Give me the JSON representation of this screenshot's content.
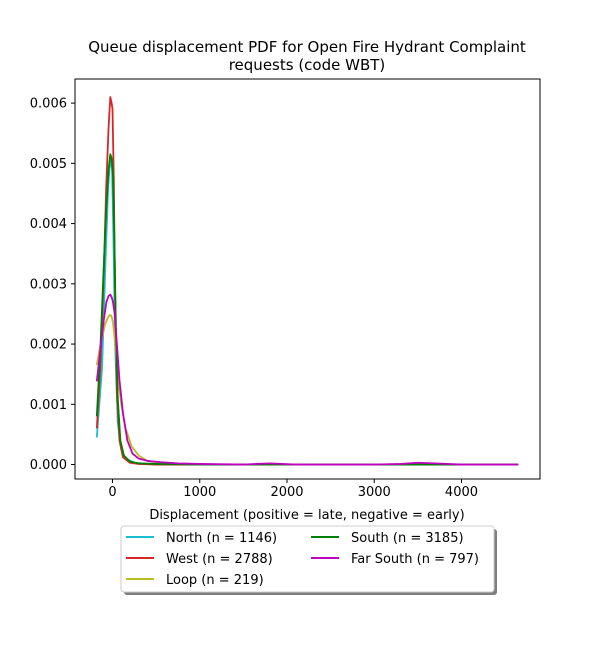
{
  "chart_data": {
    "type": "line",
    "title_line1": "Queue displacement PDF for Open Fire Hydrant Complaint",
    "title_line2": "requests (code WBT)",
    "xlabel": "Displacement (positive = late, negative = early)",
    "ylabel": "",
    "xlim": [
      -430,
      4900
    ],
    "ylim": [
      -0.00024,
      0.0064
    ],
    "xticks": [
      0,
      1000,
      2000,
      3000,
      4000
    ],
    "yticks": [
      0.0,
      0.001,
      0.002,
      0.003,
      0.004,
      0.005,
      0.006
    ],
    "ytick_labels": [
      "0.000",
      "0.001",
      "0.002",
      "0.003",
      "0.004",
      "0.005",
      "0.006"
    ],
    "grid": false,
    "legend_position": "below",
    "series": [
      {
        "name": "North (n = 1146)",
        "color": "#17becf",
        "x": [
          -180,
          -120,
          -80,
          -50,
          -25,
          -5,
          10,
          30,
          60,
          100,
          150,
          250,
          400,
          700,
          1000,
          1500,
          2000,
          3000,
          4000,
          4650
        ],
        "y": [
          0.00045,
          0.0016,
          0.0034,
          0.0046,
          0.0051,
          0.0049,
          0.0038,
          0.002,
          0.0007,
          0.00025,
          0.0001,
          3e-05,
          1e-05,
          0.0,
          0.0,
          0.0,
          0.0,
          0.0,
          0.0,
          0.0
        ]
      },
      {
        "name": "West (n = 2788)",
        "color": "#d62728",
        "x": [
          -180,
          -140,
          -100,
          -70,
          -45,
          -25,
          -10,
          0,
          15,
          30,
          50,
          80,
          120,
          200,
          300,
          500,
          1000,
          2000,
          3000,
          4000,
          4650
        ],
        "y": [
          0.0006,
          0.0016,
          0.0032,
          0.0047,
          0.0056,
          0.0061,
          0.006,
          0.0059,
          0.0047,
          0.0028,
          0.0012,
          0.0004,
          0.00012,
          3e-05,
          1e-05,
          0.0,
          0.0,
          0.0,
          0.0,
          0.0,
          0.0
        ]
      },
      {
        "name": "Loop (n = 219)",
        "color": "#bcbd22",
        "x": [
          -180,
          -150,
          -120,
          -90,
          -60,
          -35,
          -20,
          -5,
          10,
          30,
          60,
          100,
          150,
          220,
          300,
          400,
          600,
          1000,
          2000,
          3000,
          4000,
          4650
        ],
        "y": [
          0.00165,
          0.0019,
          0.0021,
          0.0023,
          0.00242,
          0.00248,
          0.00248,
          0.00243,
          0.0023,
          0.002,
          0.0015,
          0.001,
          0.0006,
          0.0003,
          0.00015,
          6e-05,
          2e-05,
          0.0,
          0.0,
          0.0,
          0.0,
          0.0
        ]
      },
      {
        "name": "South (n = 3185)",
        "color": "#008000",
        "x": [
          -180,
          -140,
          -100,
          -70,
          -45,
          -25,
          -10,
          5,
          20,
          40,
          60,
          90,
          130,
          200,
          300,
          500,
          1000,
          2000,
          3000,
          4000,
          4650
        ],
        "y": [
          0.0008,
          0.0019,
          0.0033,
          0.0043,
          0.0049,
          0.00515,
          0.00508,
          0.0048,
          0.0038,
          0.0022,
          0.0011,
          0.0004,
          0.00015,
          5e-05,
          2e-05,
          1e-05,
          0.0,
          0.0,
          0.0,
          0.0,
          0.0
        ]
      },
      {
        "name": "Far South (n = 797)",
        "color": "#bf00bf",
        "x": [
          -180,
          -140,
          -100,
          -70,
          -45,
          -25,
          -10,
          5,
          25,
          50,
          80,
          120,
          170,
          230,
          300,
          400,
          550,
          750,
          1000,
          1500,
          1800,
          2100,
          2500,
          3000,
          3300,
          3500,
          3700,
          4000,
          4300,
          4650
        ],
        "y": [
          0.00138,
          0.0019,
          0.0024,
          0.0027,
          0.0028,
          0.00282,
          0.00278,
          0.0027,
          0.0025,
          0.002,
          0.0014,
          0.00085,
          0.0004,
          0.00018,
          0.0001,
          6e-05,
          4e-05,
          2e-05,
          1e-05,
          0.0,
          2e-05,
          0.0,
          0.0,
          0.0,
          1e-05,
          3e-05,
          2e-05,
          0.0,
          0.0,
          0.0
        ]
      }
    ]
  }
}
